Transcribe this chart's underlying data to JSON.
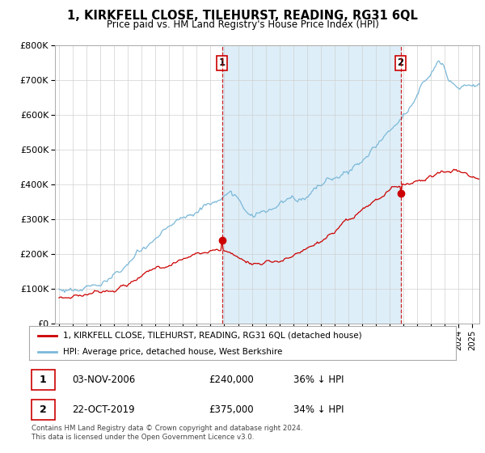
{
  "title": "1, KIRKFELL CLOSE, TILEHURST, READING, RG31 6QL",
  "subtitle": "Price paid vs. HM Land Registry's House Price Index (HPI)",
  "legend_line1": "1, KIRKFELL CLOSE, TILEHURST, READING, RG31 6QL (detached house)",
  "legend_line2": "HPI: Average price, detached house, West Berkshire",
  "footnote": "Contains HM Land Registry data © Crown copyright and database right 2024.\nThis data is licensed under the Open Government Licence v3.0.",
  "sale1_date": "03-NOV-2006",
  "sale1_price": "£240,000",
  "sale1_hpi": "36% ↓ HPI",
  "sale2_date": "22-OCT-2019",
  "sale2_price": "£375,000",
  "sale2_hpi": "34% ↓ HPI",
  "hpi_color": "#7bb8d8",
  "price_color": "#cc0000",
  "shade_color": "#ddeef8",
  "sale1_x": 2006.833,
  "sale1_y": 240000,
  "sale2_x": 2019.792,
  "sale2_y": 375000,
  "ylim": [
    0,
    800000
  ],
  "xlim_start": 1994.7,
  "xlim_end": 2025.5
}
